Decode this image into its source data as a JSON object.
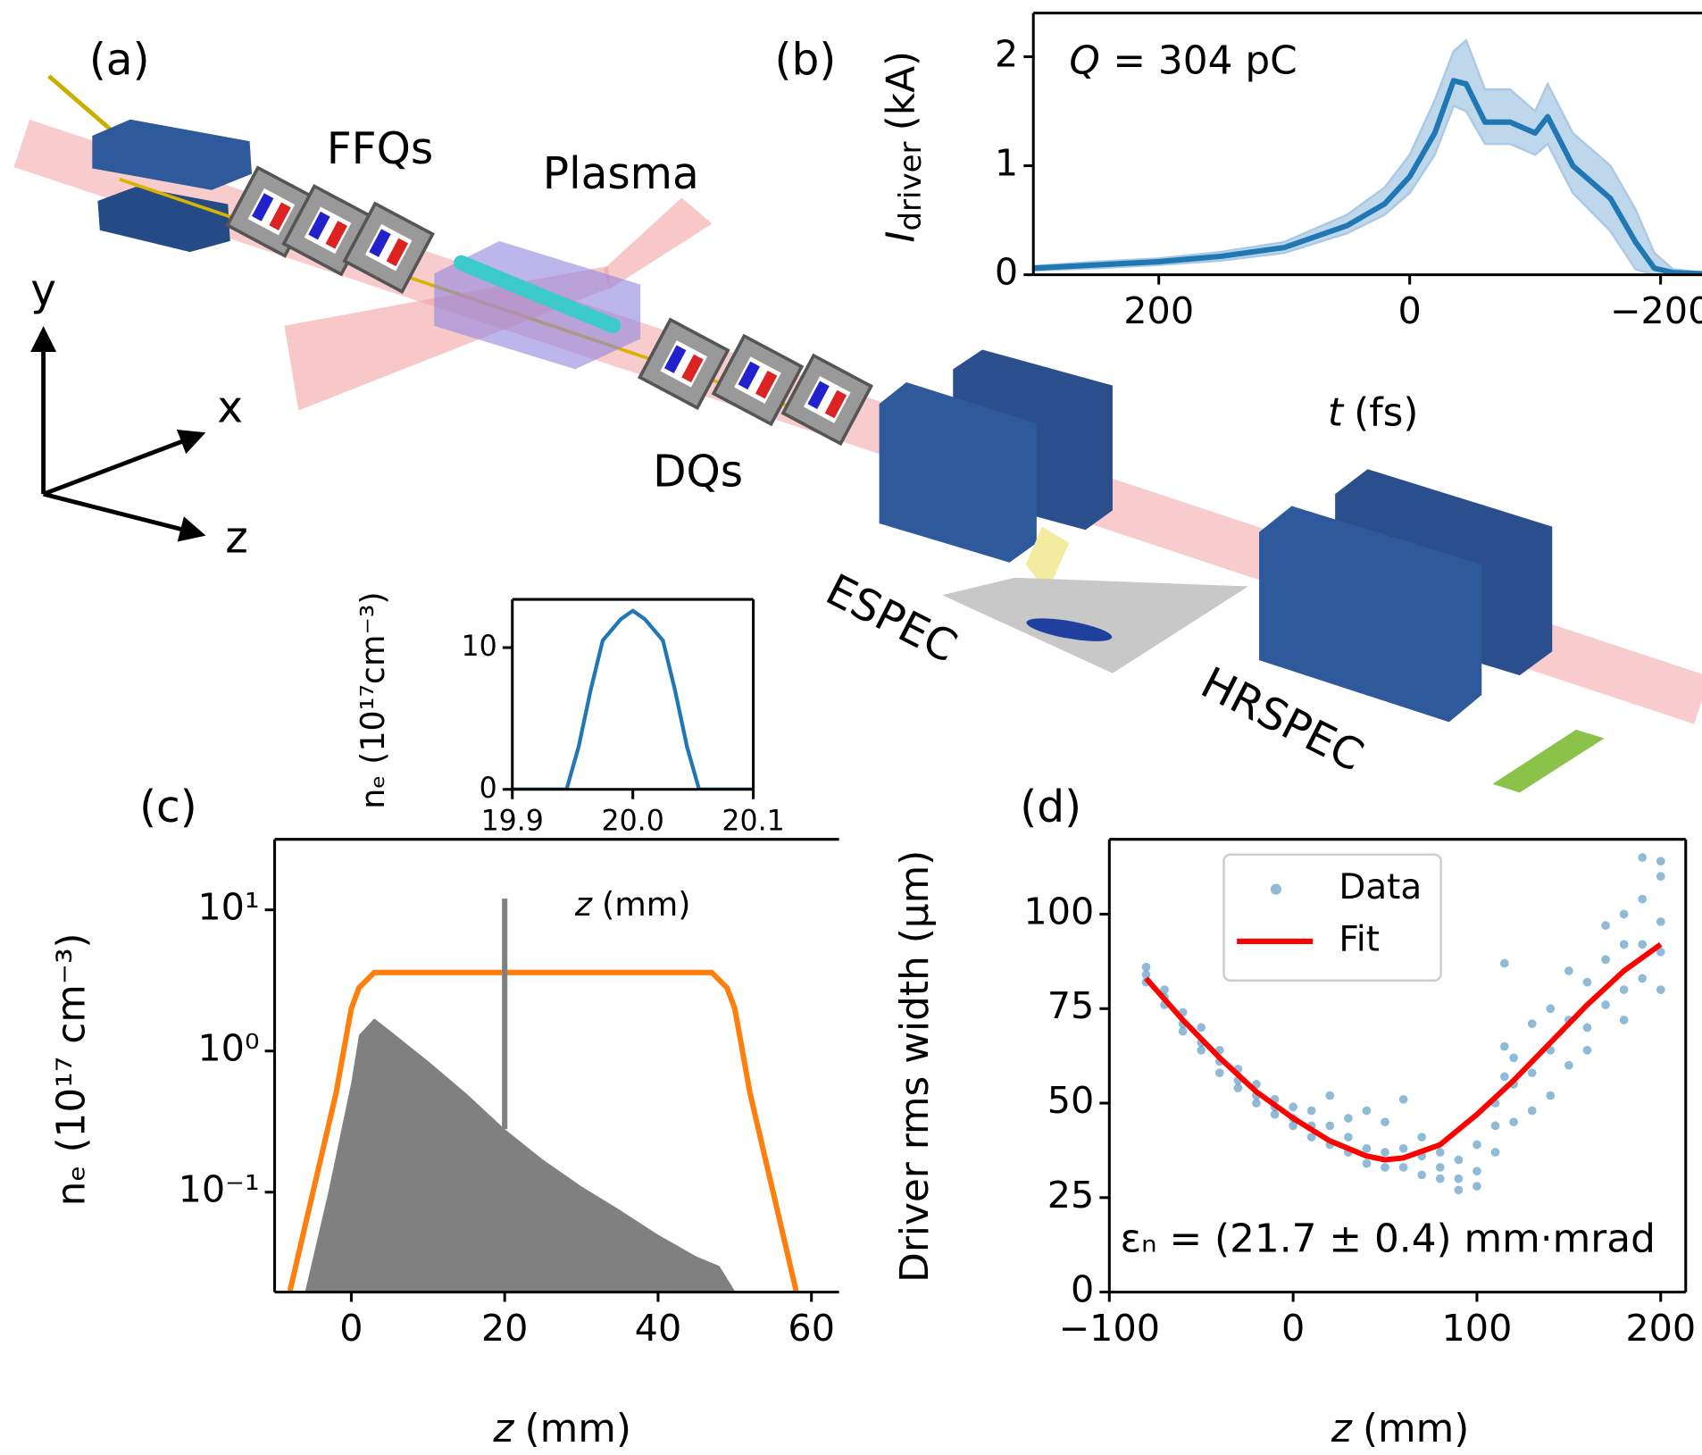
{
  "diagram": {
    "panel": "(a)",
    "labels": [
      "FFQs",
      "Plasma",
      "DQs",
      "ESPEC",
      "HRSPEC"
    ],
    "axes": [
      "x",
      "y",
      "z"
    ]
  },
  "chart_data": [
    {
      "type": "line",
      "panel": "(b)",
      "xlabel": {
        "symbol": "t",
        "unit": "(fs)"
      },
      "ylabel": {
        "symbol": "I",
        "subscript": "driver",
        "unit": "(kA)"
      },
      "annotation": {
        "symbol": "Q",
        "text": "= 304 pC"
      },
      "xlim": [
        300,
        -233
      ],
      "ylim": [
        0,
        2.4
      ],
      "xticks": [
        200,
        0,
        {
          "value": -200,
          "label": "−200"
        }
      ],
      "yticks": [
        0,
        1,
        2
      ],
      "series": [
        {
          "type": "line",
          "color": "#1f77b4",
          "band_color": "#aac9e4",
          "x": [
            300,
            250,
            200,
            150,
            100,
            50,
            20,
            0,
            -20,
            -35,
            -45,
            -60,
            -80,
            -100,
            -110,
            -130,
            -160,
            -180,
            -195,
            -210,
            -233
          ],
          "values": [
            0.06,
            0.09,
            0.12,
            0.17,
            0.25,
            0.45,
            0.65,
            0.9,
            1.3,
            1.78,
            1.75,
            1.4,
            1.4,
            1.3,
            1.45,
            1.0,
            0.7,
            0.3,
            0.06,
            0.02,
            0.01
          ],
          "band_low": [
            0.04,
            0.06,
            0.09,
            0.13,
            0.2,
            0.38,
            0.55,
            0.75,
            1.1,
            1.55,
            1.5,
            1.2,
            1.2,
            1.1,
            1.2,
            0.75,
            0.4,
            0.05,
            0,
            0,
            0
          ],
          "band_high": [
            0.08,
            0.12,
            0.15,
            0.21,
            0.3,
            0.55,
            0.8,
            1.1,
            1.6,
            2.05,
            2.15,
            1.7,
            1.7,
            1.5,
            1.75,
            1.3,
            1.0,
            0.6,
            0.2,
            0.05,
            0.02
          ]
        }
      ]
    },
    {
      "type": "line",
      "xlabel": {
        "symbol": "z",
        "unit": "(mm)"
      },
      "ylabel": "nₑ (10¹⁷cm⁻³)",
      "xlim": [
        19.9,
        20.1
      ],
      "ylim": [
        0,
        13.4
      ],
      "xticks": [
        19.9,
        {
          "value": 20,
          "label": "20.0"
        },
        20.1
      ],
      "yticks": [
        0,
        10
      ],
      "series": [
        {
          "type": "line",
          "color": "#1f77b4",
          "x": [
            19.9,
            19.945,
            19.955,
            19.965,
            19.975,
            19.99,
            20.0,
            20.01,
            20.025,
            20.035,
            20.045,
            20.055,
            20.1
          ],
          "values": [
            0,
            0,
            3,
            7,
            10.5,
            12,
            12.6,
            12,
            10.5,
            7,
            3,
            0,
            0
          ]
        }
      ]
    },
    {
      "type": "area",
      "panel": "(c)",
      "xlabel": {
        "symbol": "z",
        "unit": "(mm)"
      },
      "ylabel": "nₑ (10¹⁷ cm⁻³)",
      "yscale": "log",
      "xlim": [
        -10,
        63.6
      ],
      "ylim": [
        0.0196,
        31.6
      ],
      "xticks": [
        0,
        20,
        40,
        60
      ],
      "yticks": [
        {
          "value": 0.1,
          "label": "10⁻¹"
        },
        {
          "value": 1,
          "label": "10⁰"
        },
        {
          "value": 10,
          "label": "10¹"
        }
      ],
      "series": [
        {
          "type": "area",
          "color": "#808080",
          "x": [
            -6,
            -3,
            0,
            1,
            3,
            5,
            10,
            15,
            20,
            25,
            30,
            35,
            40,
            45,
            48,
            50
          ],
          "values": [
            0.02,
            0.1,
            0.6,
            1.3,
            1.7,
            1.4,
            0.85,
            0.5,
            0.28,
            0.17,
            0.11,
            0.075,
            0.05,
            0.035,
            0.03,
            0.02
          ]
        },
        {
          "type": "line",
          "color": "#ff7f0e",
          "x": [
            -8,
            -5,
            -2,
            0,
            1,
            3,
            47,
            49,
            50,
            52,
            55,
            58
          ],
          "values": [
            0.02,
            0.1,
            0.5,
            2.0,
            2.8,
            3.6,
            3.6,
            2.8,
            2.0,
            0.5,
            0.1,
            0.02
          ]
        },
        {
          "type": "line",
          "color": "#808080",
          "x": [
            20,
            20
          ],
          "values": [
            0.28,
            12
          ]
        }
      ]
    },
    {
      "type": "scatter",
      "panel": "(d)",
      "xlabel": {
        "symbol": "z",
        "unit": "(mm)"
      },
      "ylabel": "Driver rms width (μm)",
      "annotation": "εₙ = (21.7 ± 0.4) mm·mrad",
      "legend": "upper center",
      "xlim": [
        -100,
        213.6
      ],
      "ylim": [
        0,
        119.8
      ],
      "xticks": [
        {
          "value": -100,
          "label": "−100"
        },
        0,
        100,
        200
      ],
      "yticks": [
        0,
        25,
        50,
        75,
        100
      ],
      "series": [
        {
          "type": "scatter",
          "name": "Data",
          "color": "#1f77b4",
          "x": [
            -80,
            -80,
            -80,
            -70,
            -70,
            -70,
            -60,
            -60,
            -60,
            -50,
            -50,
            -50,
            -40,
            -40,
            -40,
            -30,
            -30,
            -30,
            -20,
            -20,
            -20,
            -10,
            -10,
            -10,
            0,
            0,
            0,
            10,
            10,
            10,
            20,
            20,
            20,
            30,
            30,
            30,
            40,
            40,
            40,
            50,
            50,
            50,
            60,
            60,
            60,
            70,
            70,
            70,
            80,
            80,
            80,
            90,
            90,
            90,
            100,
            100,
            100,
            110,
            110,
            110,
            115,
            115,
            115,
            120,
            120,
            120,
            130,
            130,
            130,
            140,
            140,
            140,
            150,
            150,
            150,
            160,
            160,
            160,
            170,
            170,
            170,
            180,
            180,
            180,
            180,
            190,
            190,
            190,
            190,
            200,
            200,
            200,
            200,
            200
          ],
          "values": [
            86,
            84,
            82,
            80,
            78,
            76,
            74,
            71,
            69,
            70,
            66,
            64,
            64,
            61,
            58,
            59,
            56,
            54,
            55,
            52,
            50,
            51,
            49,
            47,
            49,
            46,
            44,
            48,
            44,
            41,
            52,
            44,
            39,
            46,
            41,
            37,
            48,
            38,
            34,
            45,
            37,
            33,
            51,
            38,
            33,
            41,
            36,
            31,
            37,
            33,
            30,
            35,
            30,
            27,
            39,
            32,
            28,
            50,
            44,
            37,
            87,
            65,
            57,
            62,
            55,
            45,
            71,
            58,
            48,
            75,
            64,
            52,
            85,
            72,
            60,
            82,
            70,
            64,
            97,
            88,
            76,
            100,
            92,
            80,
            72,
            115,
            104,
            92,
            83,
            114,
            110,
            98,
            90,
            80
          ]
        },
        {
          "type": "line",
          "name": "Fit",
          "color": "#ff0000",
          "x": [
            -80,
            -60,
            -40,
            -20,
            0,
            20,
            40,
            50,
            60,
            80,
            100,
            120,
            140,
            160,
            180,
            200
          ],
          "values": [
            83,
            72,
            62,
            53,
            46,
            40,
            36,
            35,
            35.5,
            39,
            47,
            56,
            66,
            76,
            85,
            92
          ]
        }
      ]
    }
  ]
}
